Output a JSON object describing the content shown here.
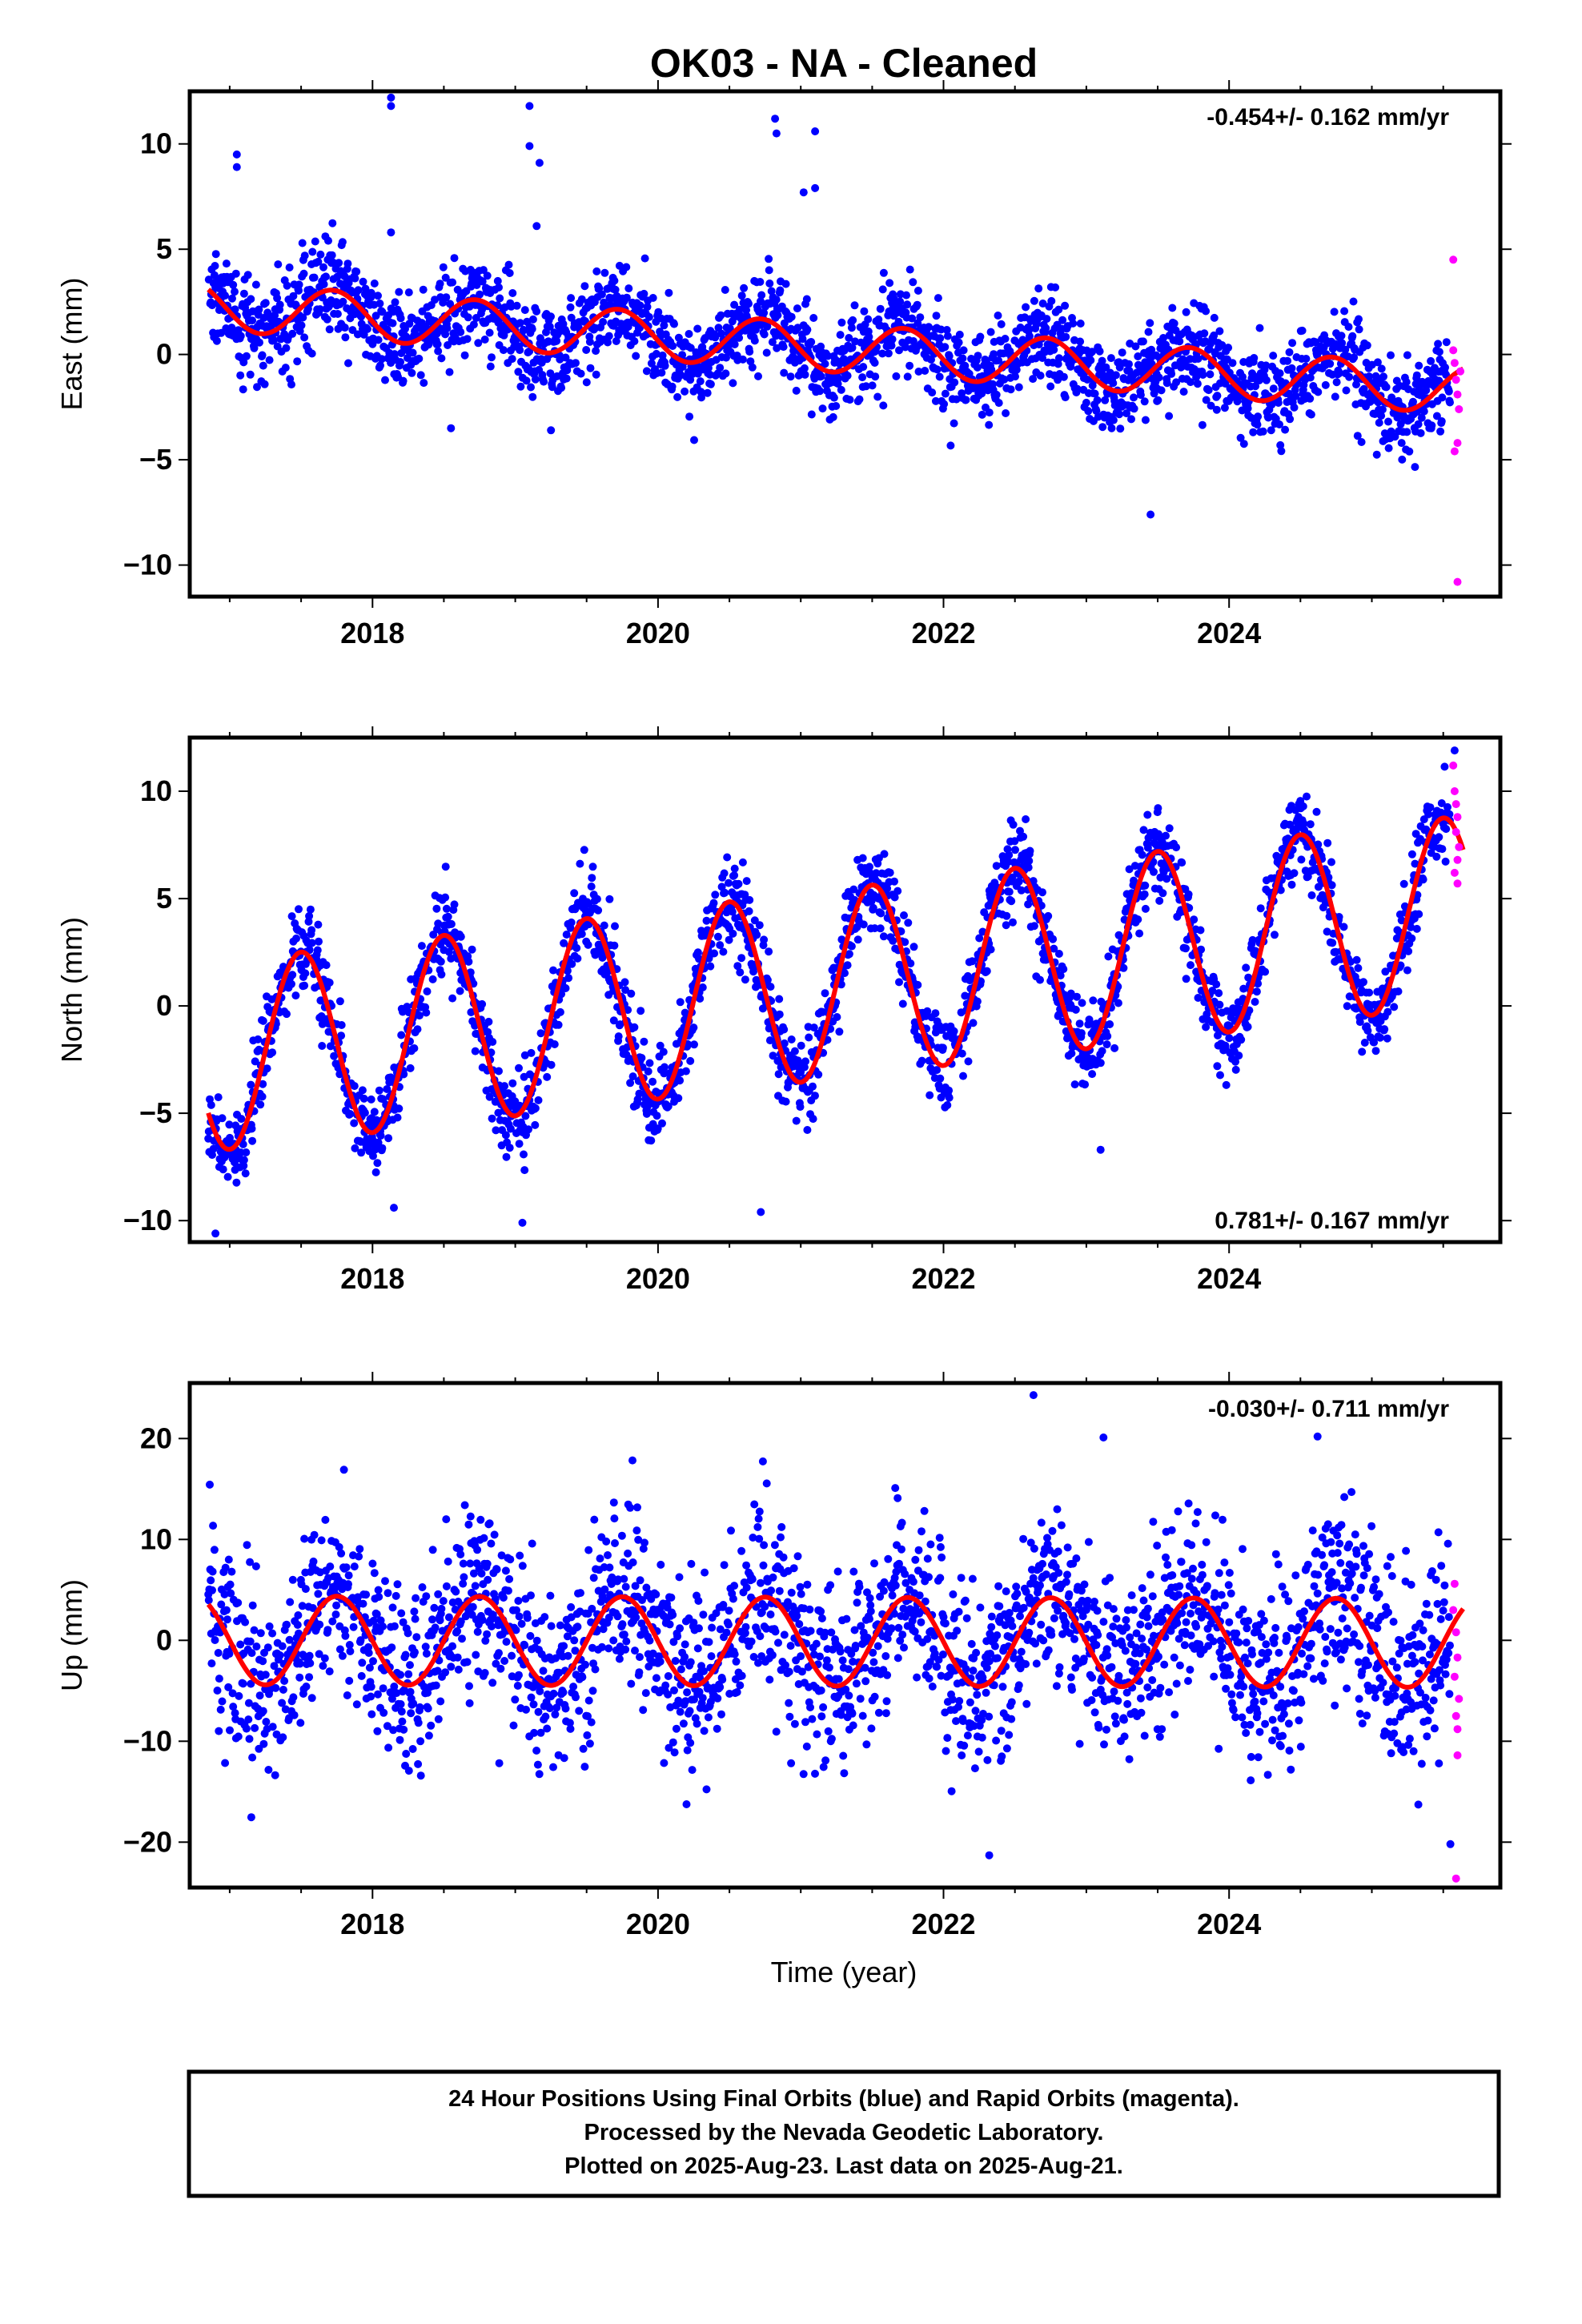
{
  "title": "OK03  - NA - Cleaned",
  "x_axis_title": "Time (year)",
  "footer": {
    "lines": [
      "24 Hour Positions Using Final Orbits (blue) and Rapid Orbits (magenta).",
      "Processed by the Nevada Geodetic Laboratory.",
      "Plotted on 2025-Aug-23. Last data on 2025-Aug-21."
    ]
  },
  "colors": {
    "final_orbits": "#0000ff",
    "rapid_orbits": "#ff00ff",
    "model": "#ff0000"
  },
  "chart_data": [
    {
      "type": "scatter",
      "component": "east",
      "ylabel": "East (mm)",
      "rate_label": "-0.454+/- 0.162 mm/yr",
      "rate_position": "top-right",
      "xlim": [
        2016.72,
        2025.9
      ],
      "ylim": [
        -11.5,
        12.5
      ],
      "xticks": [
        2018,
        2020,
        2022,
        2024
      ],
      "yticks": [
        -10,
        -5,
        0,
        5,
        10
      ],
      "xtick_labels": [
        "2018",
        "2020",
        "2022",
        "2024"
      ],
      "ytick_labels": [
        "−10",
        "−5",
        "0",
        "5",
        "10"
      ],
      "data_start": 2016.85,
      "data_end": 2025.64,
      "rapid_start": 2025.55,
      "model": {
        "offset": 2.3,
        "trend_mm_per_yr": -0.454,
        "annual_amp": 1.15,
        "annual_peak": 0.72
      },
      "scatter_sd": 1.1,
      "outliers": [
        [
          2017.05,
          9.5
        ],
        [
          2017.05,
          8.9
        ],
        [
          2018.13,
          12.2
        ],
        [
          2018.13,
          11.8
        ],
        [
          2018.13,
          5.8
        ],
        [
          2019.1,
          11.8
        ],
        [
          2019.1,
          9.9
        ],
        [
          2019.17,
          9.1
        ],
        [
          2019.15,
          6.1
        ],
        [
          2020.82,
          11.2
        ],
        [
          2020.83,
          10.5
        ],
        [
          2021.1,
          10.6
        ],
        [
          2021.02,
          7.7
        ],
        [
          2021.1,
          7.9
        ],
        [
          2023.45,
          -7.6
        ],
        [
          2018.55,
          -3.5
        ],
        [
          2019.25,
          -3.6
        ]
      ],
      "rapid_points": [
        [
          2025.57,
          4.5
        ],
        [
          2025.57,
          0.2
        ],
        [
          2025.58,
          -0.4
        ],
        [
          2025.59,
          -1.2
        ],
        [
          2025.6,
          -1.9
        ],
        [
          2025.61,
          -2.6
        ],
        [
          2025.6,
          -4.2
        ],
        [
          2025.58,
          -4.6
        ],
        [
          2025.62,
          -0.8
        ],
        [
          2025.6,
          -10.8
        ]
      ]
    },
    {
      "type": "scatter",
      "component": "north",
      "ylabel": "North (mm)",
      "rate_label": "0.781+/- 0.167 mm/yr",
      "rate_position": "bottom-right",
      "xlim": [
        2016.72,
        2025.9
      ],
      "ylim": [
        -11.0,
        12.5
      ],
      "xticks": [
        2018,
        2020,
        2022,
        2024
      ],
      "yticks": [
        -10,
        -5,
        0,
        5,
        10
      ],
      "xtick_labels": [
        "2018",
        "2020",
        "2022",
        "2024"
      ],
      "ytick_labels": [
        "−10",
        "−5",
        "0",
        "5",
        "10"
      ],
      "data_start": 2016.85,
      "data_end": 2025.64,
      "rapid_start": 2025.55,
      "model": {
        "offset": -2.4,
        "trend_mm_per_yr": 0.781,
        "annual_amp": 4.4,
        "annual_peak": 0.5
      },
      "scatter_sd": 1.0,
      "outliers": [
        [
          2016.9,
          -10.6
        ],
        [
          2018.15,
          -9.4
        ],
        [
          2019.05,
          -10.1
        ],
        [
          2020.72,
          -9.6
        ],
        [
          2023.1,
          -6.7
        ],
        [
          2025.58,
          11.9
        ]
      ],
      "rapid_points": [
        [
          2025.57,
          11.2
        ],
        [
          2025.58,
          10.0
        ],
        [
          2025.59,
          9.4
        ],
        [
          2025.6,
          8.8
        ],
        [
          2025.59,
          8.1
        ],
        [
          2025.61,
          7.4
        ],
        [
          2025.6,
          6.8
        ],
        [
          2025.58,
          6.2
        ],
        [
          2025.6,
          5.7
        ]
      ]
    },
    {
      "type": "scatter",
      "component": "up",
      "ylabel": "Up (mm)",
      "rate_label": "-0.030+/- 0.711 mm/yr",
      "rate_position": "top-right",
      "xlim": [
        2016.72,
        2025.9
      ],
      "ylim": [
        -24.5,
        25.5
      ],
      "xticks": [
        2018,
        2020,
        2022,
        2024
      ],
      "yticks": [
        -20,
        -10,
        0,
        10,
        20
      ],
      "xtick_labels": [
        "2018",
        "2020",
        "2022",
        "2024"
      ],
      "ytick_labels": [
        "−20",
        "−10",
        "0",
        "10",
        "20"
      ],
      "data_start": 2016.85,
      "data_end": 2025.64,
      "rapid_start": 2025.55,
      "model": {
        "offset": 0.0,
        "trend_mm_per_yr": -0.03,
        "annual_amp": 4.4,
        "annual_peak": 0.75
      },
      "scatter_sd": 4.6,
      "outliers": [
        [
          2022.63,
          24.3
        ],
        [
          2024.62,
          20.2
        ],
        [
          2023.12,
          20.1
        ],
        [
          2022.32,
          -21.3
        ],
        [
          2025.55,
          -20.2
        ]
      ],
      "rapid_points": [
        [
          2025.58,
          5.6
        ],
        [
          2025.57,
          3.0
        ],
        [
          2025.59,
          0.8
        ],
        [
          2025.6,
          -1.7
        ],
        [
          2025.58,
          -3.6
        ],
        [
          2025.61,
          -5.8
        ],
        [
          2025.59,
          -7.5
        ],
        [
          2025.6,
          -8.8
        ],
        [
          2025.6,
          -11.4
        ],
        [
          2025.59,
          -23.6
        ]
      ]
    }
  ]
}
